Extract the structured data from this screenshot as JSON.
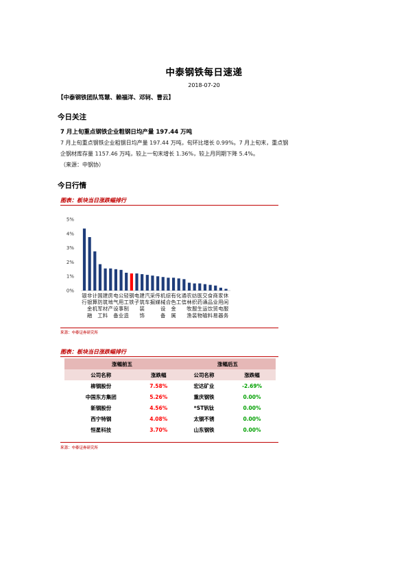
{
  "header": {
    "title": "中泰钢铁每日速递",
    "date": "2018-07-20",
    "authors": "【中泰钢铁团队笃慧、赖福洋、邓轲、曹云】"
  },
  "focus": {
    "heading": "今日关注",
    "headline": "7 月上旬重点钢铁企业粗钢日均产量 197.44 万吨",
    "lines": [
      "7 月上旬重点钢铁企业粗钢日均产量 197.44 万吨，旬环比增长 0.99%。7 月上旬末，重点钢",
      "企钢材库存量 1157.46 万吨，较上一旬末增长 1.36%，较上月同期下降 5.4%。",
      "（来源：中钢协）"
    ]
  },
  "market": {
    "heading": "今日行情",
    "chart_title": "图表：板块当日涨跌幅排行",
    "chart_source": "来源：中泰证券研究所",
    "table_title": "图表：板块当日涨跌幅排行",
    "table_source": "来源：中泰证券研究所"
  },
  "chart_data": {
    "type": "bar",
    "ylim": [
      0,
      5
    ],
    "yticks": [
      "0%",
      "1%",
      "2%",
      "3%",
      "4%",
      "5%"
    ],
    "grid": false,
    "highlight_color": "#ff0000",
    "bar_color": "#1f3d7a",
    "categories": [
      [
        "银",
        "行"
      ],
      [
        "非",
        "银",
        "金",
        "融"
      ],
      [
        "计",
        "算",
        "机"
      ],
      [
        "国",
        "防",
        "军",
        "工"
      ],
      [
        "建",
        "筑",
        "材",
        "料"
      ],
      [
        "房",
        "地",
        "产"
      ],
      [
        "电",
        "气",
        "设",
        "备"
      ],
      [
        "公",
        "用",
        "事",
        "业"
      ],
      [
        "轻",
        "工",
        "制",
        "造"
      ],
      [
        "钢",
        "铁"
      ],
      [
        "电",
        "子"
      ],
      [
        "建",
        "筑",
        "装",
        "饰"
      ],
      [
        "汽",
        "车"
      ],
      [
        "采",
        "掘"
      ],
      [
        "传",
        "媒"
      ],
      [
        "机",
        "械",
        "设",
        "备"
      ],
      [
        "综",
        "合"
      ],
      [
        "有",
        "色",
        "金",
        "属"
      ],
      [
        "化",
        "工"
      ],
      [
        "通",
        "信"
      ],
      [
        "农",
        "林",
        "牧",
        "渔"
      ],
      [
        "纺",
        "织",
        "服",
        "装"
      ],
      [
        "医",
        "药",
        "生",
        "物"
      ],
      [
        "交",
        "通",
        "运",
        "输"
      ],
      [
        "食",
        "品",
        "饮",
        "料"
      ],
      [
        "商",
        "业",
        "贸",
        "易"
      ],
      [
        "家",
        "用",
        "电",
        "器"
      ],
      [
        "休",
        "闲",
        "服",
        "务"
      ]
    ],
    "values": [
      4.35,
      3.75,
      2.75,
      1.85,
      1.55,
      1.55,
      1.5,
      1.45,
      1.25,
      1.2,
      1.2,
      1.15,
      1.1,
      1.05,
      1.0,
      0.95,
      0.9,
      0.9,
      0.85,
      0.8,
      0.55,
      0.5,
      0.5,
      0.45,
      0.4,
      0.35,
      0.2,
      0.12
    ]
  },
  "table": {
    "group_headers": [
      "涨幅前五",
      "涨幅后五"
    ],
    "col_headers": [
      "公司名称",
      "涨跌幅",
      "公司名称",
      "涨跌幅"
    ],
    "rows": [
      {
        "gainer": "柳钢股份",
        "gain": "7.58%",
        "loser": "宏达矿业",
        "loss": "-2.69%"
      },
      {
        "gainer": "中国东方集团",
        "gain": "5.26%",
        "loser": "重庆钢铁",
        "loss": "0.00%"
      },
      {
        "gainer": "新钢股份",
        "gain": "4.56%",
        "loser": "*ST钒钛",
        "loss": "0.00%"
      },
      {
        "gainer": "西宁特钢",
        "gain": "4.08%",
        "loser": "太钢不锈",
        "loss": "0.00%"
      },
      {
        "gainer": "恒星科技",
        "gain": "3.70%",
        "loser": "山东钢铁",
        "loss": "0.00%"
      }
    ]
  }
}
